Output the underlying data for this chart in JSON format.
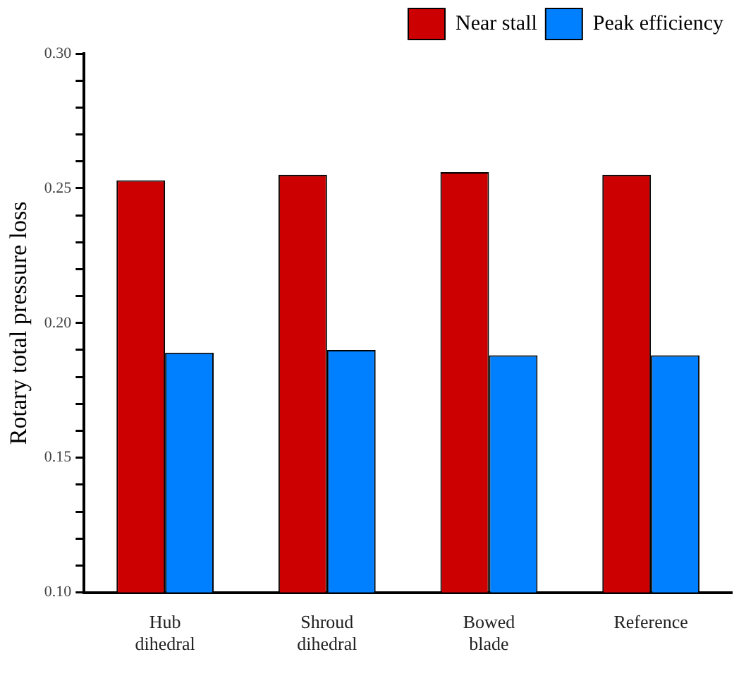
{
  "chart_data": {
    "type": "bar",
    "ylabel": "Rotary total pressure loss",
    "categories": [
      "Hub dihedral",
      "Shroud dihedral",
      "Bowed blade",
      "Reference"
    ],
    "series": [
      {
        "name": "Near stall",
        "color": "#cc0000",
        "values": [
          0.253,
          0.255,
          0.256,
          0.255
        ]
      },
      {
        "name": "Peak efficiency",
        "color": "#0080ff",
        "values": [
          0.189,
          0.19,
          0.188,
          0.188
        ]
      }
    ],
    "ylim": [
      0.1,
      0.3
    ],
    "yticks": [
      "0.10",
      {
        "value": 0.11,
        "label": null
      },
      {
        "value": 0.12,
        "label": null
      },
      {
        "value": 0.13,
        "label": null
      },
      {
        "value": 0.14,
        "label": null
      },
      {
        "value": 0.15,
        "label": "0.15"
      },
      {
        "value": 0.16,
        "label": null
      },
      {
        "value": 0.17,
        "label": null
      },
      {
        "value": 0.18,
        "label": null
      },
      {
        "value": 0.19,
        "label": null
      },
      {
        "value": 0.2,
        "label": "0.20"
      },
      {
        "value": 0.21,
        "label": null
      },
      {
        "value": 0.22,
        "label": null
      },
      {
        "value": 0.23,
        "label": null
      },
      {
        "value": 0.24,
        "label": null
      },
      {
        "value": 0.25,
        "label": "0.25"
      },
      {
        "value": 0.26,
        "label": null
      },
      {
        "value": 0.27,
        "label": null
      },
      {
        "value": 0.28,
        "label": null
      },
      {
        "value": 0.29,
        "label": null
      },
      {
        "value": 0.3,
        "label": "0.30"
      }
    ],
    "grid": false,
    "legend": "top right"
  }
}
